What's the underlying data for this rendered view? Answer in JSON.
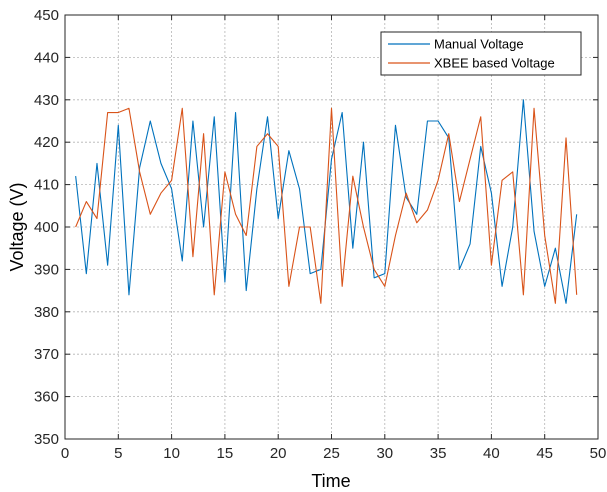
{
  "chart_data": {
    "type": "line",
    "title": "",
    "xlabel": "Time",
    "ylabel": "Voltage (V)",
    "xlim": [
      0,
      50
    ],
    "ylim": [
      350,
      450
    ],
    "xticks": [
      0,
      5,
      10,
      15,
      20,
      25,
      30,
      35,
      40,
      45,
      50
    ],
    "yticks": [
      350,
      360,
      370,
      380,
      390,
      400,
      410,
      420,
      430,
      440,
      450
    ],
    "grid": true,
    "legend_position": "top-right",
    "x": [
      1,
      2,
      3,
      4,
      5,
      6,
      7,
      8,
      9,
      10,
      11,
      12,
      13,
      14,
      15,
      16,
      17,
      18,
      19,
      20,
      21,
      22,
      23,
      24,
      25,
      26,
      27,
      28,
      29,
      30,
      31,
      32,
      33,
      34,
      35,
      36,
      37,
      38,
      39,
      40,
      41,
      42,
      43,
      44,
      45,
      46,
      47,
      48
    ],
    "series": [
      {
        "name": "Manual Voltage",
        "color": "#0072BD",
        "values": [
          412,
          389,
          415,
          391,
          424,
          384,
          414,
          425,
          415,
          409,
          392,
          425,
          400,
          426,
          387,
          427,
          385,
          409,
          426,
          402,
          418,
          409,
          389,
          390,
          416,
          427,
          395,
          420,
          388,
          389,
          424,
          407,
          403,
          425,
          425,
          421,
          390,
          396,
          419,
          408,
          386,
          400,
          430,
          399,
          386,
          395,
          382,
          403
        ]
      },
      {
        "name": "XBEE based Voltage",
        "color": "#D95319",
        "values": [
          400,
          406,
          402,
          427,
          427,
          428,
          413,
          403,
          408,
          411,
          428,
          393,
          422,
          384,
          413,
          403,
          398,
          419,
          422,
          419,
          386,
          400,
          400,
          382,
          428,
          386,
          412,
          400,
          390,
          386,
          398,
          408,
          401,
          404,
          411,
          422,
          406,
          416,
          426,
          391,
          411,
          413,
          384,
          428,
          398,
          382,
          421,
          384
        ]
      }
    ]
  }
}
